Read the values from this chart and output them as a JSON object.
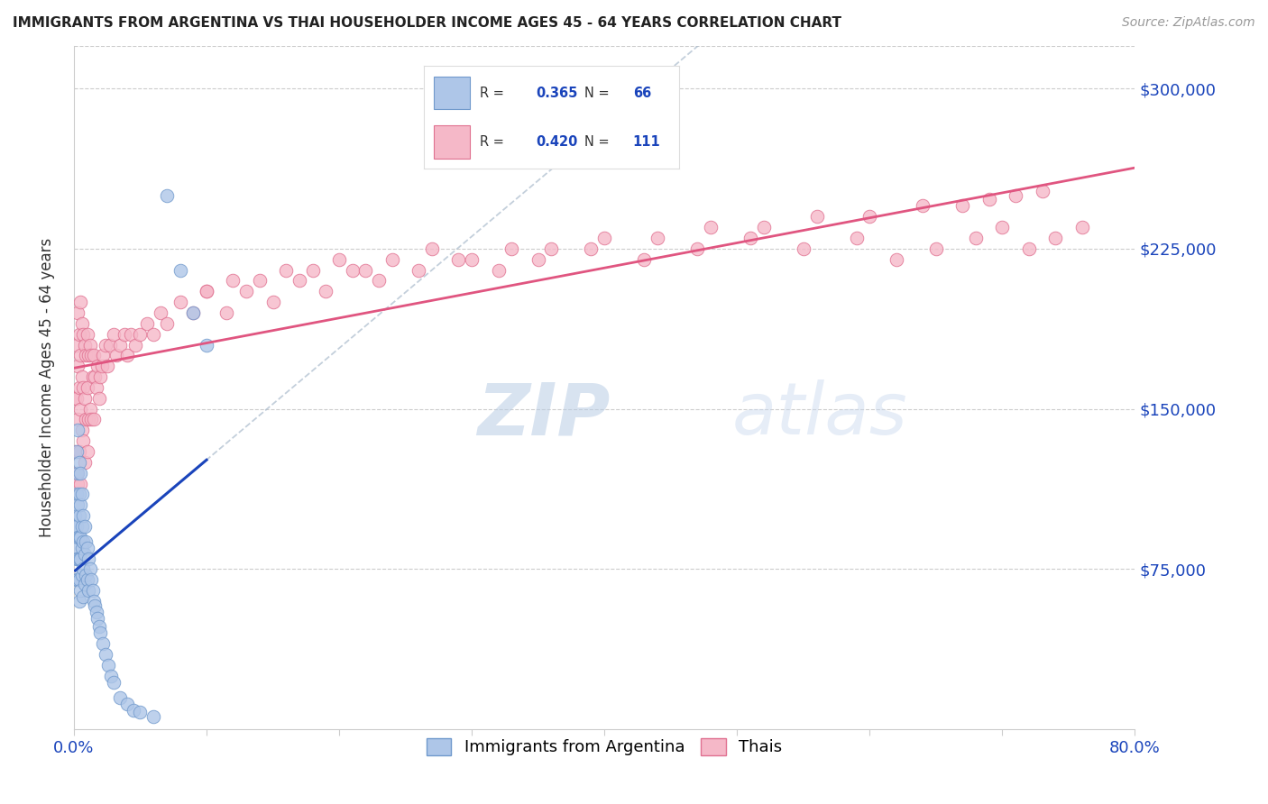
{
  "title": "IMMIGRANTS FROM ARGENTINA VS THAI HOUSEHOLDER INCOME AGES 45 - 64 YEARS CORRELATION CHART",
  "source": "Source: ZipAtlas.com",
  "ylabel": "Householder Income Ages 45 - 64 years",
  "ytick_labels": [
    "$75,000",
    "$150,000",
    "$225,000",
    "$300,000"
  ],
  "ytick_values": [
    75000,
    150000,
    225000,
    300000
  ],
  "ylim": [
    0,
    320000
  ],
  "xlim": [
    0.0,
    0.8
  ],
  "argentina_color": "#aec6e8",
  "thai_color": "#f5b8c8",
  "argentina_edge": "#7099cc",
  "thai_edge": "#e07090",
  "regression_blue_color": "#1a44bb",
  "regression_pink_color": "#e05580",
  "watermark_color": "#ccd9ee",
  "argentina_x": [
    0.001,
    0.001,
    0.001,
    0.002,
    0.002,
    0.002,
    0.002,
    0.002,
    0.003,
    0.003,
    0.003,
    0.003,
    0.003,
    0.003,
    0.004,
    0.004,
    0.004,
    0.004,
    0.004,
    0.004,
    0.004,
    0.005,
    0.005,
    0.005,
    0.005,
    0.005,
    0.006,
    0.006,
    0.006,
    0.006,
    0.007,
    0.007,
    0.007,
    0.007,
    0.008,
    0.008,
    0.008,
    0.009,
    0.009,
    0.01,
    0.01,
    0.011,
    0.011,
    0.012,
    0.013,
    0.014,
    0.015,
    0.016,
    0.017,
    0.018,
    0.019,
    0.02,
    0.022,
    0.024,
    0.026,
    0.028,
    0.03,
    0.035,
    0.04,
    0.045,
    0.05,
    0.06,
    0.07,
    0.08,
    0.09,
    0.1
  ],
  "argentina_y": [
    100000,
    95000,
    85000,
    130000,
    110000,
    95000,
    80000,
    70000,
    140000,
    120000,
    105000,
    90000,
    80000,
    70000,
    125000,
    110000,
    100000,
    90000,
    80000,
    70000,
    60000,
    120000,
    105000,
    90000,
    80000,
    65000,
    110000,
    95000,
    85000,
    72000,
    100000,
    88000,
    75000,
    62000,
    95000,
    82000,
    68000,
    88000,
    72000,
    85000,
    70000,
    80000,
    65000,
    75000,
    70000,
    65000,
    60000,
    58000,
    55000,
    52000,
    48000,
    45000,
    40000,
    35000,
    30000,
    25000,
    22000,
    15000,
    12000,
    9000,
    8000,
    6000,
    250000,
    215000,
    195000,
    180000
  ],
  "thai_x": [
    0.001,
    0.001,
    0.002,
    0.002,
    0.002,
    0.003,
    0.003,
    0.003,
    0.003,
    0.004,
    0.004,
    0.004,
    0.005,
    0.005,
    0.005,
    0.005,
    0.006,
    0.006,
    0.006,
    0.007,
    0.007,
    0.007,
    0.008,
    0.008,
    0.008,
    0.009,
    0.009,
    0.01,
    0.01,
    0.01,
    0.011,
    0.011,
    0.012,
    0.012,
    0.013,
    0.013,
    0.014,
    0.015,
    0.015,
    0.016,
    0.017,
    0.018,
    0.019,
    0.02,
    0.021,
    0.022,
    0.024,
    0.025,
    0.027,
    0.03,
    0.032,
    0.035,
    0.038,
    0.04,
    0.043,
    0.046,
    0.05,
    0.055,
    0.06,
    0.065,
    0.07,
    0.08,
    0.09,
    0.1,
    0.115,
    0.13,
    0.15,
    0.17,
    0.19,
    0.21,
    0.23,
    0.26,
    0.29,
    0.32,
    0.35,
    0.39,
    0.43,
    0.47,
    0.51,
    0.55,
    0.59,
    0.62,
    0.65,
    0.68,
    0.7,
    0.72,
    0.74,
    0.76,
    0.1,
    0.12,
    0.14,
    0.16,
    0.18,
    0.2,
    0.22,
    0.24,
    0.27,
    0.3,
    0.33,
    0.36,
    0.4,
    0.44,
    0.48,
    0.52,
    0.56,
    0.6,
    0.64,
    0.67,
    0.69,
    0.71,
    0.73
  ],
  "thai_y": [
    155000,
    130000,
    180000,
    155000,
    120000,
    195000,
    170000,
    145000,
    115000,
    185000,
    160000,
    130000,
    200000,
    175000,
    150000,
    115000,
    190000,
    165000,
    140000,
    185000,
    160000,
    135000,
    180000,
    155000,
    125000,
    175000,
    145000,
    185000,
    160000,
    130000,
    175000,
    145000,
    180000,
    150000,
    175000,
    145000,
    165000,
    175000,
    145000,
    165000,
    160000,
    170000,
    155000,
    165000,
    170000,
    175000,
    180000,
    170000,
    180000,
    185000,
    175000,
    180000,
    185000,
    175000,
    185000,
    180000,
    185000,
    190000,
    185000,
    195000,
    190000,
    200000,
    195000,
    205000,
    195000,
    205000,
    200000,
    210000,
    205000,
    215000,
    210000,
    215000,
    220000,
    215000,
    220000,
    225000,
    220000,
    225000,
    230000,
    225000,
    230000,
    220000,
    225000,
    230000,
    235000,
    225000,
    230000,
    235000,
    205000,
    210000,
    210000,
    215000,
    215000,
    220000,
    215000,
    220000,
    225000,
    220000,
    225000,
    225000,
    230000,
    230000,
    235000,
    235000,
    240000,
    240000,
    245000,
    245000,
    248000,
    250000,
    252000
  ]
}
